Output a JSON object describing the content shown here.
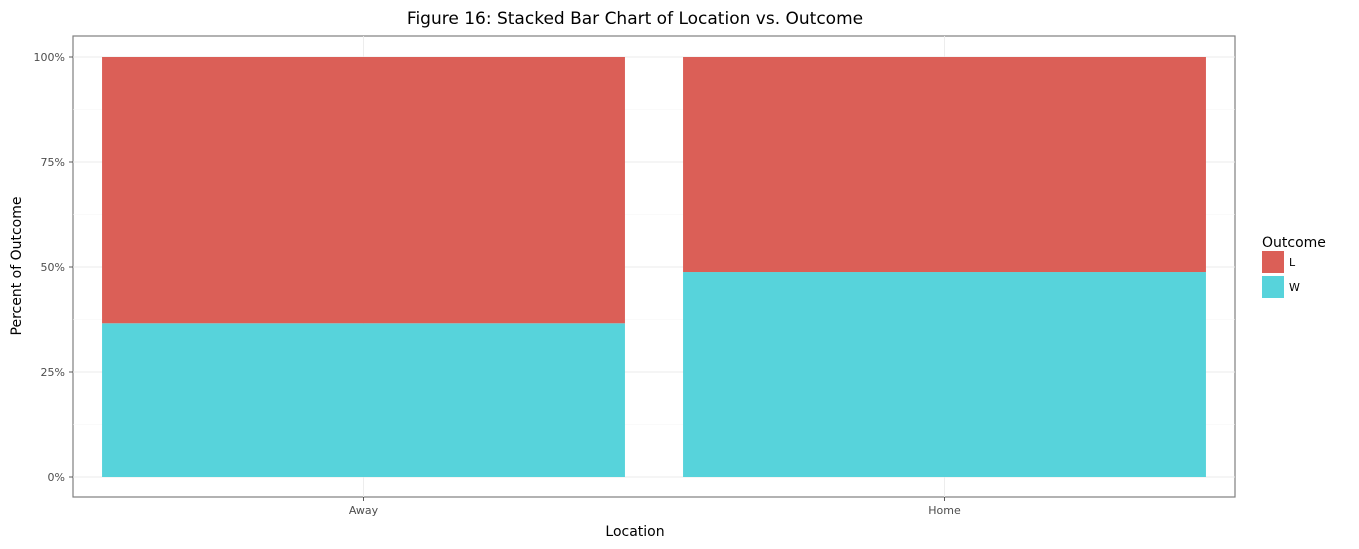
{
  "chart_data": {
    "type": "bar",
    "stacked": true,
    "title": "Figure 16: Stacked Bar Chart of Location vs. Outcome",
    "xlabel": "Location",
    "ylabel": "Percent of Outcome",
    "categories": [
      "Away",
      "Home"
    ],
    "series": [
      {
        "name": "W",
        "color": "#57d3db",
        "values": [
          36.6,
          48.8
        ]
      },
      {
        "name": "L",
        "color": "#db5f57",
        "values": [
          63.4,
          51.2
        ]
      }
    ],
    "ylim": [
      0,
      100
    ],
    "yticks": [
      0,
      25,
      50,
      75,
      100
    ],
    "ytick_labels": [
      "0%",
      "25%",
      "50%",
      "75%",
      "100%"
    ],
    "grid": true,
    "legend": {
      "title": "Outcome",
      "position": "right",
      "entries": [
        {
          "label": "L",
          "color": "#db5f57"
        },
        {
          "label": "W",
          "color": "#57d3db"
        }
      ]
    }
  }
}
